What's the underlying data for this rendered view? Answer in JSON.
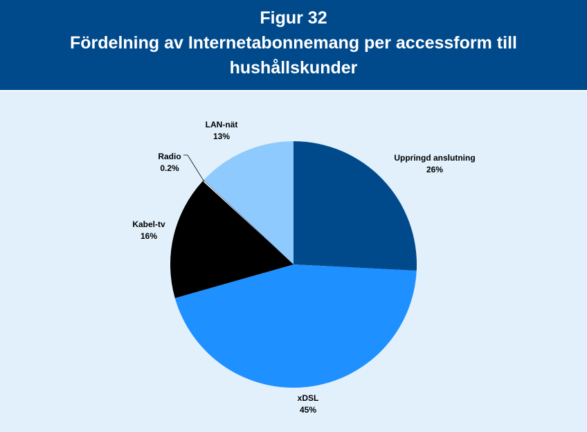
{
  "header": {
    "line1": "Figur 32",
    "line2": "Fördelning av Internetabonnemang per accessform till",
    "line3": "hushållskunder"
  },
  "colors": {
    "header_bg": "#004a8c",
    "plot_bg": "#e1f0fb"
  },
  "chart_data": {
    "type": "pie",
    "start_angle": "12 o'clock",
    "direction": "clockwise",
    "slices": [
      {
        "label": "Uppringd anslutning",
        "value_label": "26%",
        "value": 25.8,
        "color": "#004a8c"
      },
      {
        "label": "xDSL",
        "value_label": "45%",
        "value": 44.8,
        "color": "#1e90ff"
      },
      {
        "label": "Kabel-tv",
        "value_label": "16%",
        "value": 16.2,
        "color": "#000000"
      },
      {
        "label": "Radio",
        "value_label": "0.2%",
        "value": 0.2,
        "color": "#ffffff"
      },
      {
        "label": "LAN-nät",
        "value_label": "13%",
        "value": 13.0,
        "color": "#8fcaff"
      }
    ]
  }
}
